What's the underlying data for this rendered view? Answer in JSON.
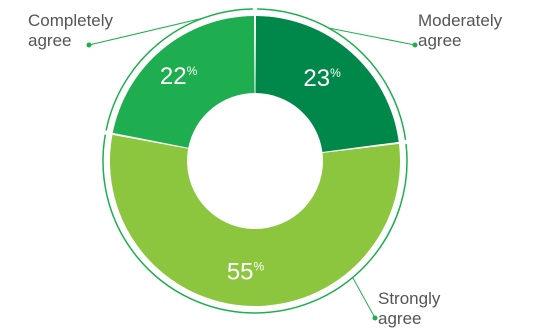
{
  "chart_data": {
    "type": "pie",
    "style": "donut",
    "title": "",
    "unit_suffix": "%",
    "slices": [
      {
        "label_lines": [
          "Moderately",
          "agree"
        ],
        "value": 23,
        "color": "#00884a"
      },
      {
        "label_lines": [
          "Strongly",
          "agree"
        ],
        "value": 55,
        "color": "#8cc63f"
      },
      {
        "label_lines": [
          "Completely",
          "agree"
        ],
        "value": 22,
        "color": "#1fae4f"
      }
    ],
    "leader_line_color": "#1fae4f",
    "label_text_color": "#555555",
    "value_text_color": "#ffffff",
    "start_angle": "top",
    "direction": "clockwise",
    "labels_placement": [
      "right-top",
      "bottom-right",
      "left-top"
    ]
  }
}
